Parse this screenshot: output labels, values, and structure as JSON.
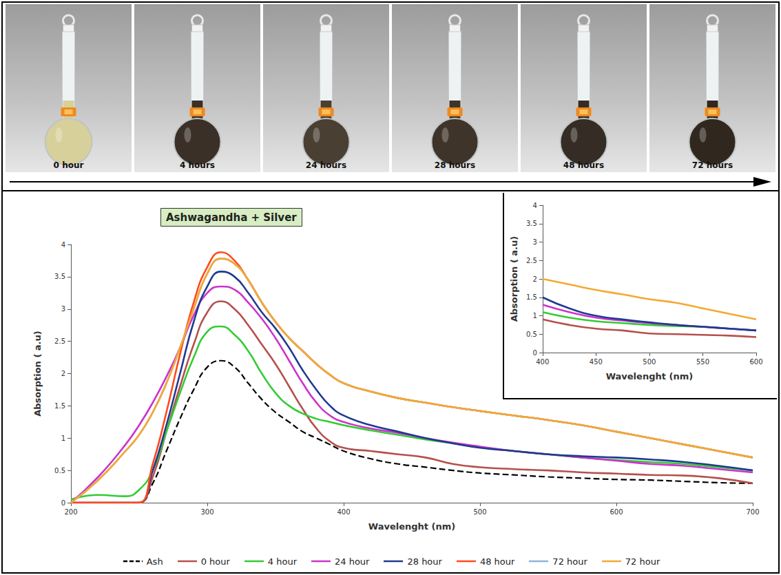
{
  "photo_strip": {
    "labels": [
      "0 hour",
      "4 hours",
      "24 hours",
      "28 hours",
      "48 hours",
      "72 hours"
    ],
    "colors": [
      "#d8d09a",
      "#3a3028",
      "#4a3f33",
      "#3f3429",
      "#352c25",
      "#30281f"
    ]
  },
  "chart_data": [
    {
      "type": "line",
      "title": "Ashwagandha + Silver",
      "xlabel": "Wavelenght (nm)",
      "ylabel": "Absorption ( a.u)",
      "x": [
        200,
        220,
        240,
        250,
        260,
        270,
        280,
        290,
        300,
        310,
        320,
        330,
        340,
        350,
        360,
        370,
        380,
        390,
        400,
        420,
        440,
        460,
        480,
        500,
        525,
        550,
        575,
        600,
        625,
        650,
        675,
        700
      ],
      "series": [
        {
          "name": "Ash",
          "color": "#000000",
          "line_style": "dashed",
          "values": [
            0,
            0,
            0,
            0,
            0.3,
            0.8,
            1.3,
            1.75,
            2.1,
            2.2,
            2.1,
            1.85,
            1.6,
            1.4,
            1.25,
            1.1,
            1.0,
            0.9,
            0.8,
            0.68,
            0.6,
            0.55,
            0.5,
            0.46,
            0.43,
            0.4,
            0.38,
            0.36,
            0.35,
            0.33,
            0.31,
            0.3
          ]
        },
        {
          "name": "0 hour",
          "color": "#b5504c",
          "line_style": "solid",
          "values": [
            0,
            0,
            0,
            0,
            0.4,
            1.1,
            1.8,
            2.45,
            2.95,
            3.12,
            3.0,
            2.75,
            2.45,
            2.15,
            1.8,
            1.45,
            1.15,
            0.95,
            0.85,
            0.8,
            0.75,
            0.7,
            0.6,
            0.55,
            0.52,
            0.5,
            0.47,
            0.45,
            0.43,
            0.42,
            0.38,
            0.3
          ]
        },
        {
          "name": "4 hour",
          "color": "#33cc33",
          "line_style": "solid",
          "values": [
            0.05,
            0.12,
            0.1,
            0.2,
            0.5,
            1.1,
            1.7,
            2.25,
            2.65,
            2.73,
            2.6,
            2.35,
            2.0,
            1.7,
            1.5,
            1.38,
            1.3,
            1.25,
            1.2,
            1.12,
            1.05,
            0.98,
            0.92,
            0.86,
            0.8,
            0.75,
            0.7,
            0.66,
            0.63,
            0.6,
            0.55,
            0.5
          ]
        },
        {
          "name": "24 hour",
          "color": "#cc33cc",
          "line_style": "solid",
          "values": [
            0,
            0.4,
            0.9,
            1.2,
            1.55,
            1.95,
            2.4,
            2.9,
            3.25,
            3.35,
            3.3,
            3.1,
            2.85,
            2.55,
            2.2,
            1.85,
            1.55,
            1.35,
            1.25,
            1.15,
            1.08,
            1.0,
            0.93,
            0.87,
            0.8,
            0.75,
            0.7,
            0.65,
            0.6,
            0.57,
            0.52,
            0.47
          ]
        },
        {
          "name": "28 hour",
          "color": "#1f3a8f",
          "line_style": "solid",
          "values": [
            0,
            0,
            0,
            0,
            0.5,
            1.2,
            2.0,
            2.8,
            3.35,
            3.58,
            3.5,
            3.25,
            2.95,
            2.7,
            2.4,
            2.05,
            1.75,
            1.5,
            1.35,
            1.2,
            1.1,
            1.0,
            0.92,
            0.85,
            0.8,
            0.75,
            0.72,
            0.7,
            0.67,
            0.63,
            0.57,
            0.5
          ]
        },
        {
          "name": "48 hour",
          "color": "#ff4a1c",
          "line_style": "solid",
          "values": [
            0,
            0,
            0,
            0,
            0.6,
            1.4,
            2.3,
            3.1,
            3.65,
            3.88,
            3.75,
            3.45,
            3.1,
            2.8,
            2.55,
            2.35,
            2.15,
            1.98,
            1.85,
            1.72,
            1.62,
            1.55,
            1.48,
            1.42,
            1.35,
            1.28,
            1.2,
            1.1,
            1.0,
            0.9,
            0.8,
            0.7
          ]
        },
        {
          "name": "72 hour",
          "color": "#8ab4e0",
          "line_style": "solid",
          "values": [
            0,
            0.35,
            0.8,
            1.05,
            1.4,
            1.85,
            2.4,
            3.0,
            3.55,
            3.78,
            3.7,
            3.45,
            3.1,
            2.8,
            2.55,
            2.35,
            2.15,
            1.98,
            1.85,
            1.72,
            1.62,
            1.55,
            1.48,
            1.42,
            1.35,
            1.28,
            1.2,
            1.1,
            1.0,
            0.9,
            0.8,
            0.7
          ]
        },
        {
          "name": "72 hour",
          "color": "#f5a830",
          "line_style": "solid",
          "values": [
            0,
            0.35,
            0.8,
            1.05,
            1.4,
            1.85,
            2.4,
            3.0,
            3.55,
            3.78,
            3.7,
            3.45,
            3.1,
            2.8,
            2.55,
            2.35,
            2.15,
            1.98,
            1.85,
            1.72,
            1.62,
            1.55,
            1.48,
            1.42,
            1.35,
            1.28,
            1.2,
            1.1,
            1.0,
            0.9,
            0.8,
            0.7
          ]
        }
      ],
      "xlim": [
        200,
        700
      ],
      "xticks": [
        200,
        300,
        400,
        500,
        600,
        700
      ],
      "ylim": [
        0,
        4
      ],
      "yticks": [
        0,
        0.5,
        1,
        1.5,
        2,
        2.5,
        3,
        3.5,
        4
      ],
      "grid": false,
      "legend": "bottom"
    },
    {
      "type": "line",
      "xlabel": "Wavelenght (nm)",
      "ylabel": "Absorption ( a.u)",
      "x": [
        400,
        425,
        450,
        475,
        500,
        525,
        550,
        575,
        600
      ],
      "series": [
        {
          "name": "0 hour",
          "color": "#b5504c",
          "values": [
            0.9,
            0.75,
            0.65,
            0.6,
            0.52,
            0.5,
            0.48,
            0.46,
            0.42
          ]
        },
        {
          "name": "4 hour",
          "color": "#33cc33",
          "values": [
            1.1,
            0.95,
            0.85,
            0.8,
            0.75,
            0.72,
            0.7,
            0.65,
            0.6
          ]
        },
        {
          "name": "24 hour",
          "color": "#cc33cc",
          "values": [
            1.3,
            1.1,
            0.95,
            0.87,
            0.8,
            0.75,
            0.7,
            0.65,
            0.6
          ]
        },
        {
          "name": "28 hour",
          "color": "#1f3a8f",
          "values": [
            1.5,
            1.2,
            1.0,
            0.9,
            0.82,
            0.75,
            0.7,
            0.65,
            0.6
          ]
        },
        {
          "name": "72 hour",
          "color": "#f5a830",
          "values": [
            2.0,
            1.85,
            1.7,
            1.58,
            1.45,
            1.35,
            1.2,
            1.05,
            0.9
          ]
        }
      ],
      "xlim": [
        400,
        600
      ],
      "xticks": [
        400,
        450,
        500,
        550,
        600
      ],
      "ylim": [
        0,
        4
      ],
      "yticks": [
        0,
        0.5,
        1,
        1.5,
        2,
        2.5,
        3,
        3.5,
        4
      ],
      "grid": false
    }
  ]
}
